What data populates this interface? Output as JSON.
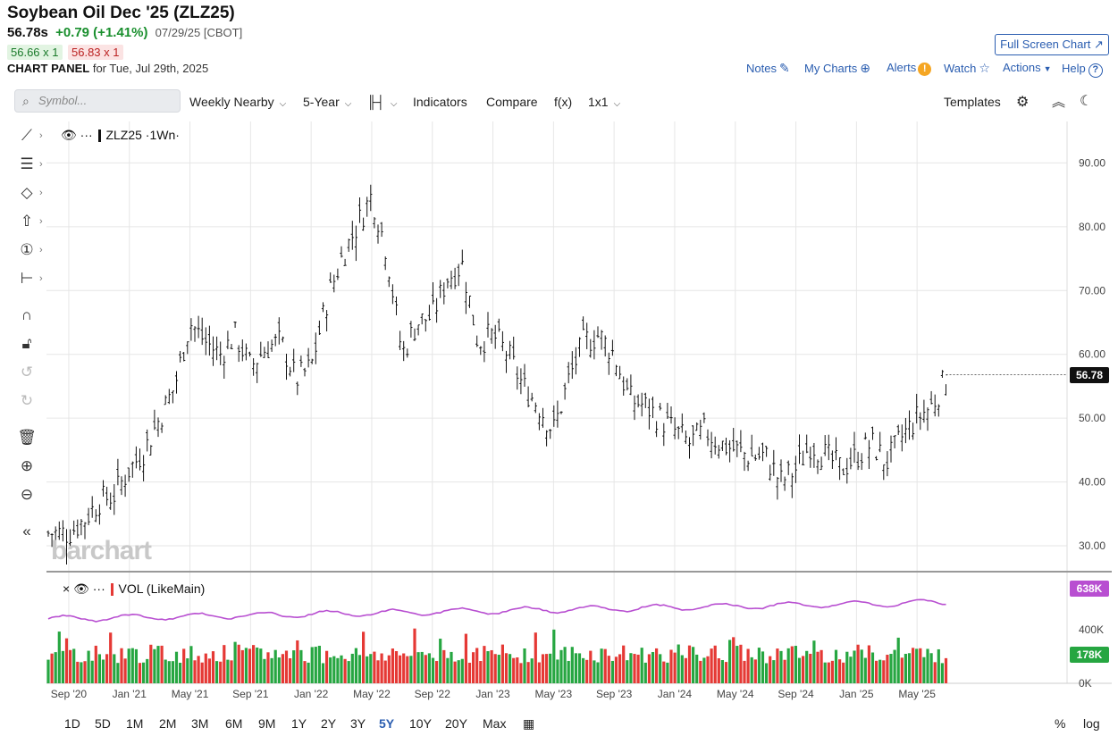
{
  "header": {
    "title": "Soybean Oil Dec '25 (ZLZ25)",
    "last": "56.78s",
    "change": "+0.79 (+1.41%)",
    "date": "07/29/25 [CBOT]",
    "bid": "56.66 x 1",
    "ask": "56.83 x 1",
    "panel_label": "CHART PANEL",
    "panel_date": "for Tue, Jul 29th, 2025",
    "fullscreen": "Full Screen Chart",
    "links": {
      "notes": "Notes",
      "mycharts": "My Charts",
      "alerts": "Alerts",
      "watch": "Watch",
      "actions": "Actions",
      "help": "Help"
    }
  },
  "toolbar": {
    "symbol_placeholder": "Symbol...",
    "interval": "Weekly Nearby",
    "range": "5-Year",
    "indicators": "Indicators",
    "compare": "Compare",
    "fx": "f(x)",
    "layout": "1x1",
    "templates": "Templates"
  },
  "legend": {
    "main": "ZLZ25 ·1Wn·",
    "vol": "VOL (LikeMain)"
  },
  "watermark": "barchart",
  "ranges": [
    "1D",
    "5D",
    "1M",
    "2M",
    "3M",
    "6M",
    "9M",
    "1Y",
    "2Y",
    "3Y",
    "5Y",
    "10Y",
    "20Y",
    "Max"
  ],
  "active_range": "5Y",
  "bottom_right": {
    "percent": "%",
    "log": "log"
  },
  "icons": [
    "line-tool-icon",
    "fib-tool-icon",
    "shape-tool-icon",
    "arrow-tool-icon",
    "annotation-icon",
    "measure-icon",
    "magnet-icon",
    "lock-icon",
    "undo-icon",
    "redo-icon",
    "trash-icon",
    "zoom-in-icon",
    "zoom-out-icon",
    "collapse-icon"
  ],
  "colors": {
    "up": "#26a641",
    "down": "#e53935",
    "vol_ma": "#b84fd1",
    "link": "#2a5db0"
  },
  "chart_data": {
    "type": "bar",
    "subtype": "ohlc-weekly",
    "symbol": "ZLZ25",
    "x_ticks": [
      "Sep '20",
      "Jan '21",
      "May '21",
      "Sep '21",
      "Jan '22",
      "May '22",
      "Sep '22",
      "Jan '23",
      "May '23",
      "Sep '23",
      "Jan '24",
      "May '24",
      "Sep '24",
      "Jan '25",
      "May '25"
    ],
    "y_ticks": [
      "30.00",
      "40.00",
      "50.00",
      "60.00",
      "70.00",
      "80.00",
      "90.00"
    ],
    "ylim": [
      26.5,
      96.5
    ],
    "last_price": "56.78",
    "price_trend": [
      [
        "2020-09",
        32
      ],
      [
        "2020-10",
        34
      ],
      [
        "2020-11",
        37
      ],
      [
        "2020-12",
        38
      ],
      [
        "2021-01",
        42
      ],
      [
        "2021-02",
        45
      ],
      [
        "2021-03",
        50
      ],
      [
        "2021-04",
        55
      ],
      [
        "2021-05",
        65
      ],
      [
        "2021-06",
        62
      ],
      [
        "2021-07",
        60
      ],
      [
        "2021-08",
        63
      ],
      [
        "2021-09",
        58
      ],
      [
        "2021-10",
        61
      ],
      [
        "2021-11",
        62
      ],
      [
        "2021-12",
        56
      ],
      [
        "2022-01",
        58
      ],
      [
        "2022-02",
        68
      ],
      [
        "2022-03",
        75
      ],
      [
        "2022-04",
        80
      ],
      [
        "2022-05",
        85
      ],
      [
        "2022-06",
        76
      ],
      [
        "2022-07",
        60
      ],
      [
        "2022-08",
        65
      ],
      [
        "2022-09",
        66
      ],
      [
        "2022-10",
        72
      ],
      [
        "2022-11",
        74
      ],
      [
        "2022-12",
        62
      ],
      [
        "2023-01",
        63
      ],
      [
        "2023-02",
        60
      ],
      [
        "2023-03",
        55
      ],
      [
        "2023-04",
        52
      ],
      [
        "2023-05",
        48
      ],
      [
        "2023-06",
        56
      ],
      [
        "2023-07",
        62
      ],
      [
        "2023-08",
        63
      ],
      [
        "2023-09",
        60
      ],
      [
        "2023-10",
        53
      ],
      [
        "2023-11",
        52
      ],
      [
        "2023-12",
        50
      ],
      [
        "2024-01",
        48
      ],
      [
        "2024-02",
        46
      ],
      [
        "2024-03",
        48
      ],
      [
        "2024-04",
        46
      ],
      [
        "2024-05",
        45
      ],
      [
        "2024-06",
        44
      ],
      [
        "2024-07",
        44
      ],
      [
        "2024-08",
        40
      ],
      [
        "2024-09",
        42
      ],
      [
        "2024-10",
        46
      ],
      [
        "2024-11",
        44
      ],
      [
        "2024-12",
        42
      ],
      [
        "2025-01",
        44
      ],
      [
        "2025-02",
        46
      ],
      [
        "2025-03",
        43
      ],
      [
        "2025-04",
        47
      ],
      [
        "2025-05",
        50
      ],
      [
        "2025-06",
        52
      ],
      [
        "2025-07",
        56.78
      ]
    ],
    "volume": {
      "axis_ticks": [
        "0K",
        "400K"
      ],
      "last_volume": "178K",
      "ma_label": "638K",
      "ylim": [
        0,
        800
      ]
    }
  }
}
